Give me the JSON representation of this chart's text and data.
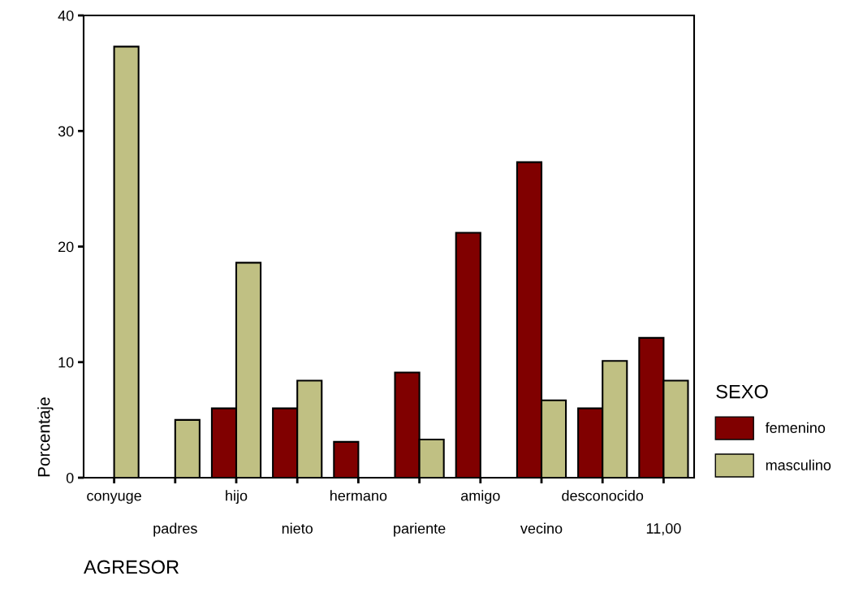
{
  "chart_data": {
    "type": "bar",
    "xlabel": "AGRESOR",
    "ylabel": "Porcentaje",
    "legend_title": "SEXO",
    "categories": [
      "conyuge",
      "padres",
      "hijo",
      "nieto",
      "hermano",
      "pariente",
      "amigo",
      "vecino",
      "desconocido",
      "11,00"
    ],
    "series": [
      {
        "name": "femenino",
        "color": "#800000",
        "values": [
          null,
          null,
          6.0,
          6.0,
          3.1,
          9.1,
          21.2,
          27.3,
          6.0,
          12.1
        ]
      },
      {
        "name": "masculino",
        "color": "#c0c083",
        "values": [
          37.3,
          5.0,
          18.6,
          8.4,
          null,
          3.3,
          null,
          6.7,
          10.1,
          8.4
        ]
      }
    ],
    "ylim": [
      0,
      40
    ],
    "yticks": [
      0,
      10,
      20,
      30,
      40
    ],
    "grid": false,
    "legend": "right"
  }
}
